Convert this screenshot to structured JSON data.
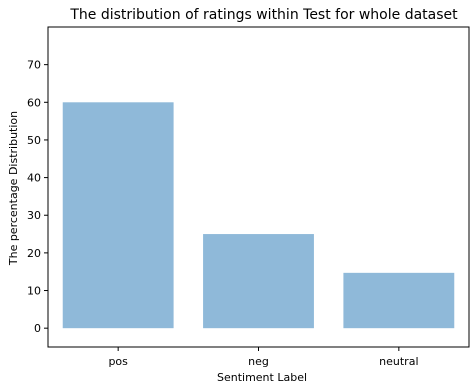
{
  "chart_data": {
    "type": "bar",
    "title": "The distribution of ratings within Test for whole dataset",
    "xlabel": "Sentiment Label",
    "ylabel": "The percentage Distribution",
    "categories": [
      "pos",
      "neg",
      "neutral"
    ],
    "values": [
      60,
      25,
      14.7
    ],
    "ylim": [
      -5,
      80
    ],
    "yticks": [
      "0",
      "10",
      "20",
      "30",
      "40",
      "50",
      "60",
      "70"
    ],
    "bar_color": "#8fb9d9",
    "grid": false,
    "legend": "none"
  }
}
